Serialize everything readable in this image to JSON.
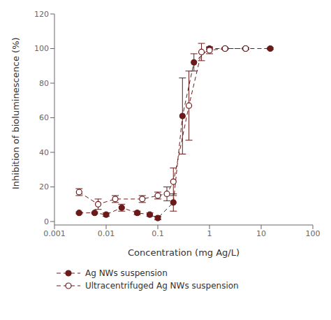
{
  "chart_data": {
    "type": "line",
    "x_label": "Concentration (mg Ag/L)",
    "y_label": "Inhibition of bioluminescence (%)",
    "log": "x",
    "xlim": [
      0.001,
      100
    ],
    "xticks": [
      0.001,
      0.01,
      0.1,
      1,
      10,
      100
    ],
    "ylim": [
      -2,
      120
    ],
    "yticks": [
      0,
      20,
      40,
      60,
      80,
      100,
      120
    ],
    "grid": false,
    "legend": "bottom",
    "series": [
      {
        "name": "Ag NWs suspension",
        "color": "#6B1A1A",
        "marker": "circle",
        "line_style": "dashed",
        "x": [
          0.003,
          0.006,
          0.01,
          0.02,
          0.04,
          0.07,
          0.1,
          0.2,
          0.3,
          0.5,
          1,
          2,
          5,
          15
        ],
        "values": [
          5,
          5,
          4,
          8,
          5,
          4,
          2,
          11,
          61,
          92,
          100,
          100,
          100,
          100
        ],
        "yerr": [
          0.5,
          0.5,
          1,
          2,
          1,
          1,
          1,
          5,
          22,
          5,
          0.5,
          0.5,
          0.5,
          0.5
        ]
      },
      {
        "name": "Ultracentrifuged Ag NWs suspension",
        "color": "#6B1A1A",
        "marker": "open_circle",
        "line_style": "dashed",
        "x": [
          0.003,
          0.007,
          0.015,
          0.05,
          0.1,
          0.15,
          0.2,
          0.4,
          0.7,
          1.0,
          2.0,
          5.0
        ],
        "values": [
          17,
          10,
          13,
          13,
          15,
          16,
          23,
          67,
          98,
          99,
          100,
          100
        ],
        "yerr": [
          2,
          3,
          2,
          2,
          2,
          4,
          8,
          20,
          5,
          2,
          0.5,
          0.5
        ]
      }
    ]
  }
}
